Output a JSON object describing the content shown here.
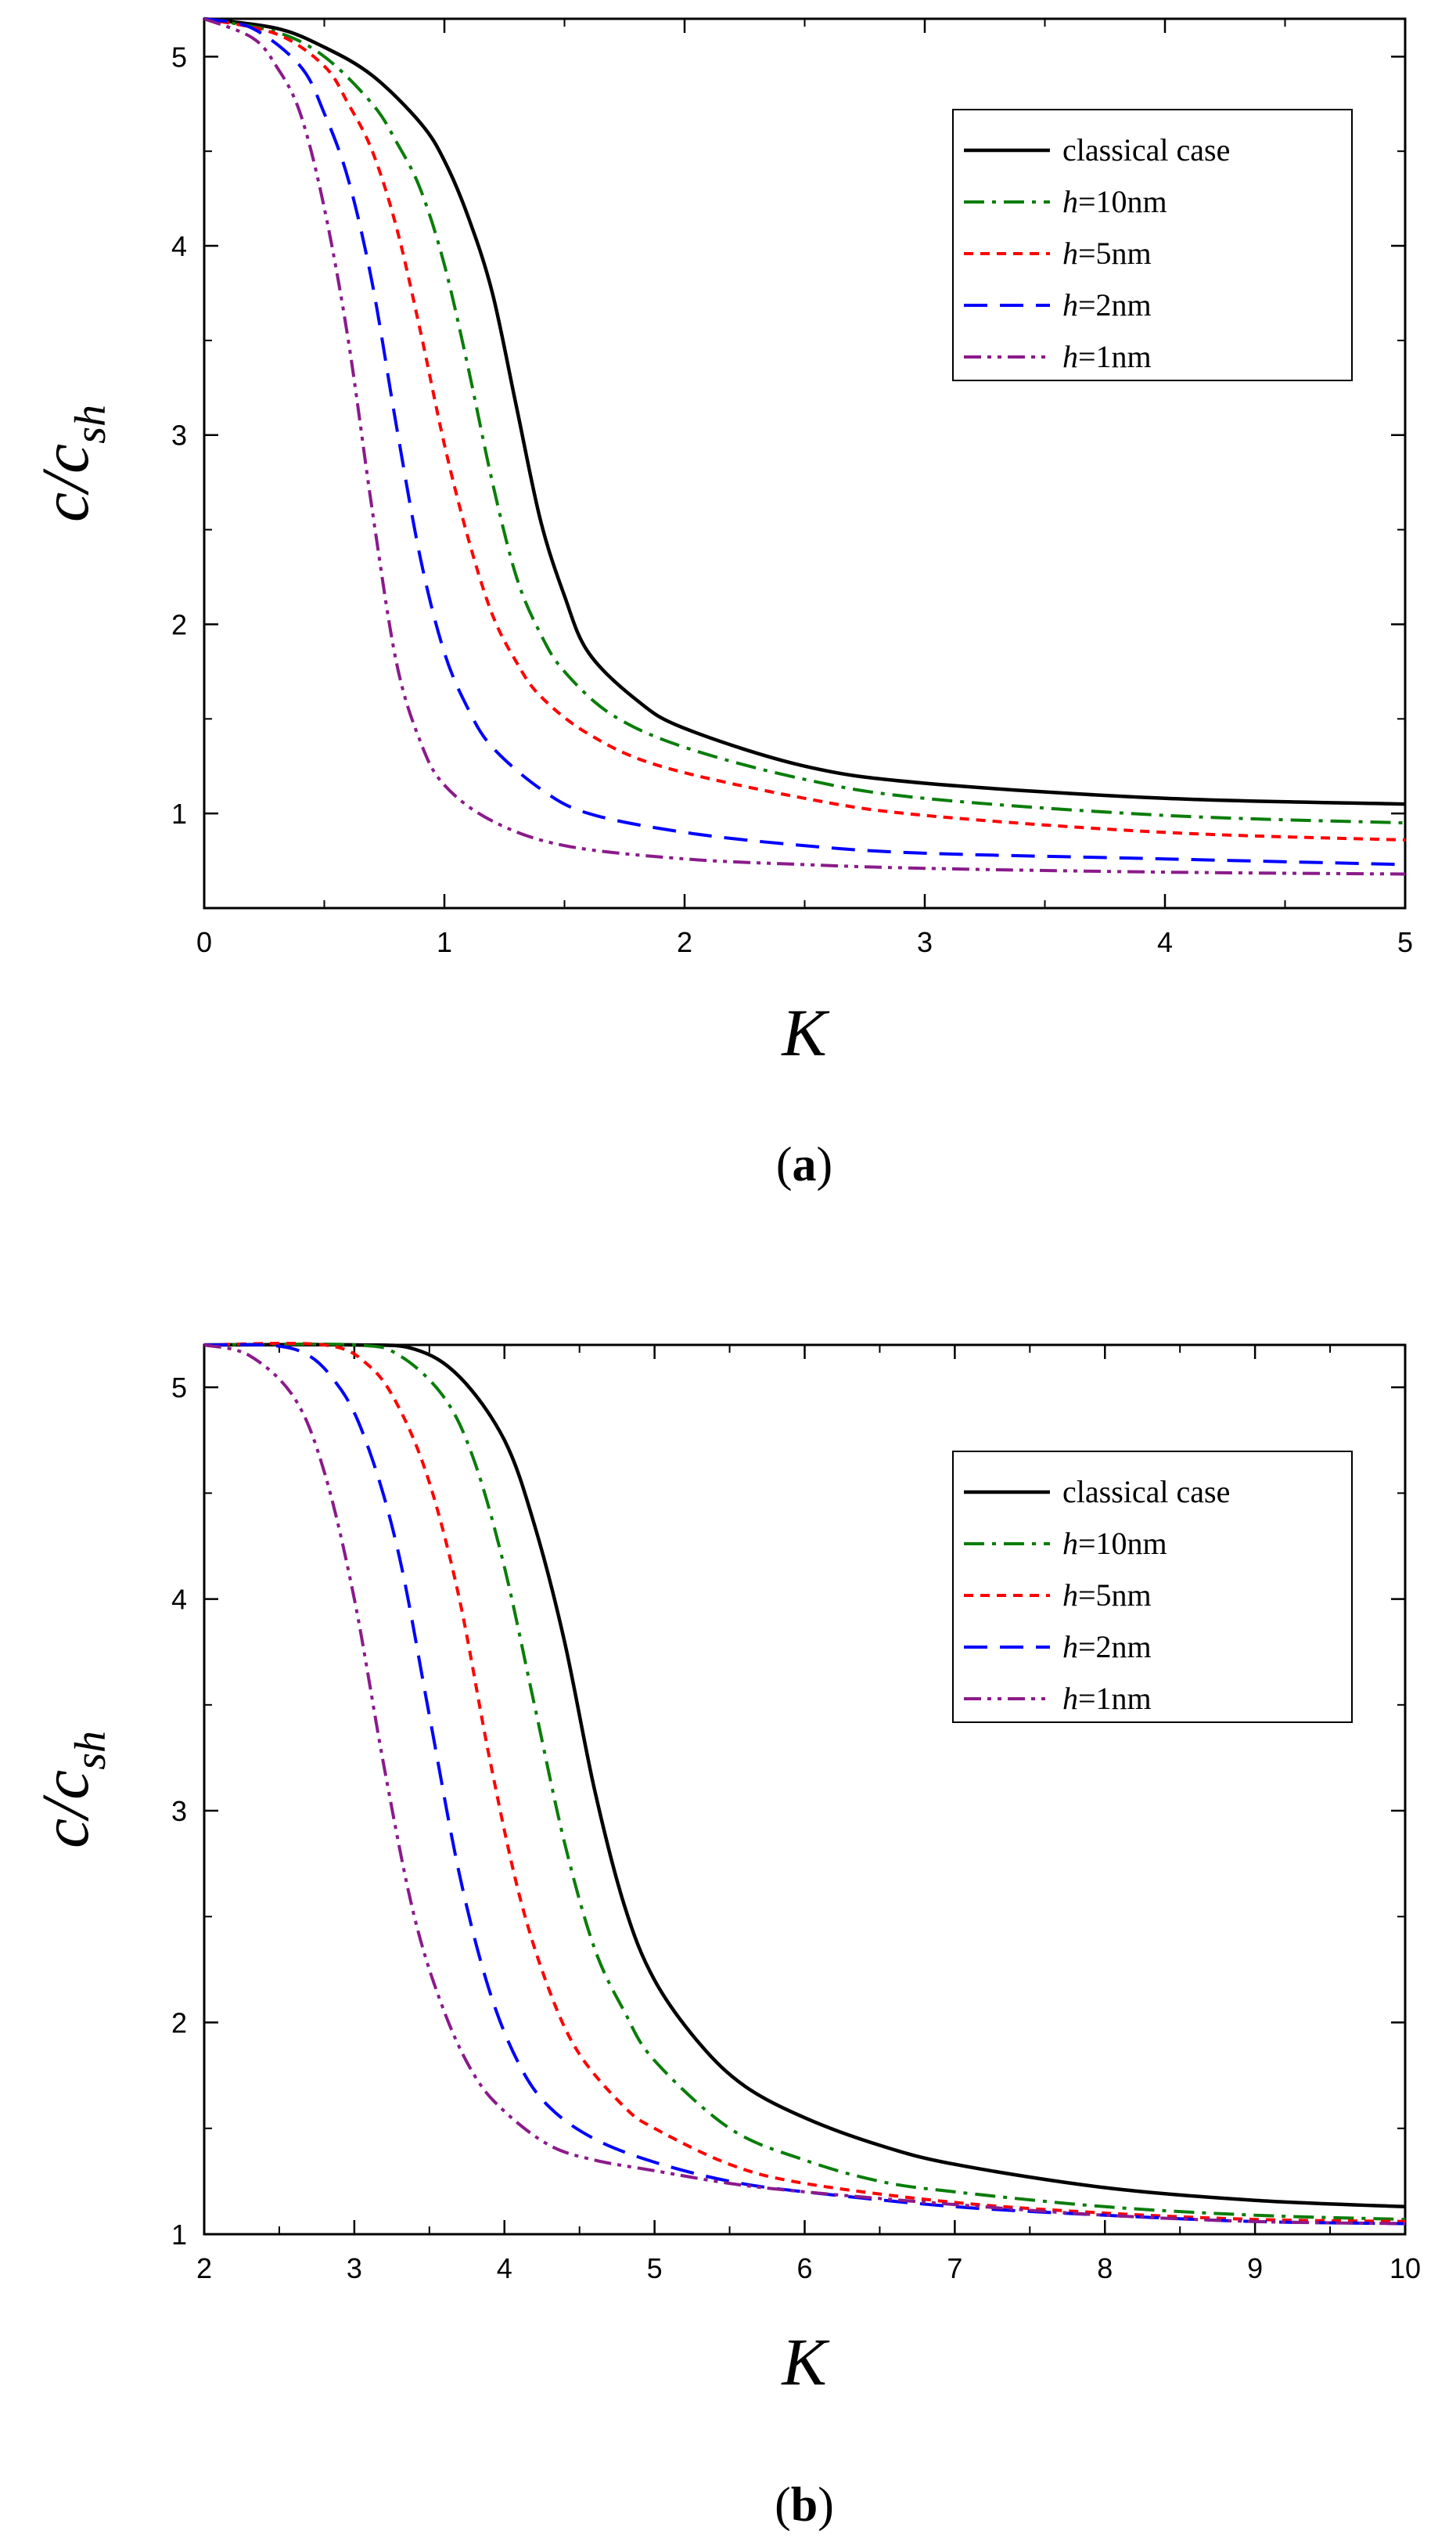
{
  "figure": {
    "panels": [
      {
        "label_open": "(",
        "label_letter": "a",
        "label_close": ")"
      },
      {
        "label_open": "(",
        "label_letter": "b",
        "label_close": ")"
      }
    ]
  },
  "chart_data": [
    {
      "type": "line",
      "title": "",
      "xlabel": "K",
      "ylabel_main": "c/c",
      "ylabel_sub": "sh",
      "xlim": [
        0,
        5
      ],
      "ylim": [
        0.5,
        5.2
      ],
      "xticks": [
        0,
        1,
        2,
        3,
        4,
        5
      ],
      "yticks": [
        1,
        2,
        3,
        4,
        5
      ],
      "legend_position": "top-right",
      "series": [
        {
          "name": "classical case",
          "name_italic": "",
          "name_rest": "classical case",
          "color": "#000000",
          "dash": "solid",
          "x": [
            0,
            0.3,
            0.5,
            0.7,
            0.9,
            1.0,
            1.1,
            1.2,
            1.3,
            1.4,
            1.5,
            1.6,
            1.8,
            2.0,
            2.5,
            3.0,
            4.0,
            5.0
          ],
          "y": [
            5.2,
            5.15,
            5.05,
            4.9,
            4.65,
            4.45,
            4.15,
            3.75,
            3.15,
            2.55,
            2.15,
            1.85,
            1.6,
            1.45,
            1.25,
            1.16,
            1.08,
            1.05
          ]
        },
        {
          "name": "h=10nm",
          "name_italic": "h",
          "name_rest": "=10nm",
          "color": "#0a7d0a",
          "dash": "dashdot",
          "x": [
            0,
            0.3,
            0.5,
            0.7,
            0.8,
            0.9,
            1.0,
            1.1,
            1.2,
            1.3,
            1.4,
            1.5,
            1.7,
            2.0,
            2.5,
            3.0,
            4.0,
            5.0
          ],
          "y": [
            5.2,
            5.13,
            5.0,
            4.75,
            4.55,
            4.3,
            3.9,
            3.35,
            2.75,
            2.25,
            1.95,
            1.75,
            1.52,
            1.35,
            1.18,
            1.08,
            0.99,
            0.95
          ]
        },
        {
          "name": "h=5nm",
          "name_italic": "h",
          "name_rest": "=5nm",
          "color": "#ff0000",
          "dash": "dashed",
          "x": [
            0,
            0.3,
            0.5,
            0.6,
            0.7,
            0.8,
            0.9,
            1.0,
            1.1,
            1.2,
            1.3,
            1.4,
            1.6,
            1.9,
            2.5,
            3.0,
            4.0,
            5.0
          ],
          "y": [
            5.2,
            5.12,
            4.95,
            4.75,
            4.5,
            4.1,
            3.55,
            2.95,
            2.45,
            2.05,
            1.8,
            1.62,
            1.42,
            1.25,
            1.08,
            0.99,
            0.9,
            0.86
          ]
        },
        {
          "name": "h=2nm",
          "name_italic": "h",
          "name_rest": "=2nm",
          "color": "#0000ff",
          "dash": "longdash",
          "x": [
            0,
            0.2,
            0.4,
            0.5,
            0.6,
            0.7,
            0.8,
            0.9,
            1.0,
            1.1,
            1.2,
            1.4,
            1.6,
            2.0,
            2.5,
            3.0,
            4.0,
            5.0
          ],
          "y": [
            5.2,
            5.15,
            4.95,
            4.7,
            4.35,
            3.8,
            3.05,
            2.35,
            1.85,
            1.55,
            1.35,
            1.13,
            1.0,
            0.9,
            0.83,
            0.79,
            0.76,
            0.73
          ]
        },
        {
          "name": "h=1nm",
          "name_italic": "h",
          "name_rest": "=1nm",
          "color": "#8b1a8b",
          "dash": "dashdotdot",
          "x": [
            0,
            0.2,
            0.3,
            0.4,
            0.5,
            0.6,
            0.7,
            0.8,
            0.9,
            1.0,
            1.2,
            1.5,
            2.0,
            2.5,
            3.0,
            4.0,
            5.0
          ],
          "y": [
            5.2,
            5.1,
            4.95,
            4.7,
            4.2,
            3.5,
            2.6,
            1.8,
            1.38,
            1.15,
            0.96,
            0.83,
            0.76,
            0.73,
            0.71,
            0.69,
            0.68
          ]
        }
      ]
    },
    {
      "type": "line",
      "title": "",
      "xlabel": "K",
      "ylabel_main": "c/c",
      "ylabel_sub": "sh",
      "xlim": [
        2,
        10
      ],
      "ylim": [
        1,
        5.2
      ],
      "xticks": [
        2,
        3,
        4,
        5,
        6,
        7,
        8,
        9,
        10
      ],
      "yticks": [
        1,
        2,
        3,
        4,
        5
      ],
      "legend_position": "top-right",
      "series": [
        {
          "name": "classical case",
          "name_italic": "",
          "name_rest": "classical case",
          "color": "#000000",
          "dash": "solid",
          "x": [
            2.0,
            3.0,
            3.4,
            3.7,
            4.0,
            4.2,
            4.4,
            4.6,
            4.8,
            5.0,
            5.3,
            5.6,
            6.0,
            6.5,
            7.0,
            8.0,
            9.0,
            10.0
          ],
          "y": [
            5.2,
            5.2,
            5.18,
            5.05,
            4.75,
            4.35,
            3.8,
            3.1,
            2.55,
            2.2,
            1.9,
            1.7,
            1.55,
            1.42,
            1.33,
            1.22,
            1.16,
            1.13
          ]
        },
        {
          "name": "h=10nm",
          "name_italic": "h",
          "name_rest": "=10nm",
          "color": "#0a7d0a",
          "dash": "dashdot",
          "x": [
            2.0,
            3.0,
            3.3,
            3.6,
            3.8,
            4.0,
            4.2,
            4.4,
            4.6,
            4.8,
            5.0,
            5.5,
            6.0,
            6.5,
            7.0,
            8.0,
            9.0,
            10.0
          ],
          "y": [
            5.2,
            5.2,
            5.15,
            4.95,
            4.65,
            4.15,
            3.5,
            2.85,
            2.35,
            2.05,
            1.82,
            1.5,
            1.35,
            1.25,
            1.2,
            1.13,
            1.09,
            1.07
          ]
        },
        {
          "name": "h=5nm",
          "name_italic": "h",
          "name_rest": "=5nm",
          "color": "#ff0000",
          "dash": "dashed",
          "x": [
            2.0,
            2.8,
            3.1,
            3.3,
            3.5,
            3.7,
            3.9,
            4.1,
            4.3,
            4.5,
            4.8,
            5.0,
            5.5,
            6.0,
            7.0,
            8.0,
            9.0,
            10.0
          ],
          "y": [
            5.2,
            5.2,
            5.1,
            4.9,
            4.55,
            4.0,
            3.25,
            2.6,
            2.15,
            1.85,
            1.6,
            1.5,
            1.33,
            1.24,
            1.15,
            1.1,
            1.07,
            1.06
          ]
        },
        {
          "name": "h=2nm",
          "name_italic": "h",
          "name_rest": "=2nm",
          "color": "#0000ff",
          "dash": "longdash",
          "x": [
            2.0,
            2.6,
            2.9,
            3.1,
            3.3,
            3.5,
            3.7,
            3.9,
            4.1,
            4.3,
            4.6,
            5.0,
            5.5,
            6.0,
            7.0,
            8.0,
            9.0,
            10.0
          ],
          "y": [
            5.2,
            5.18,
            5.0,
            4.7,
            4.2,
            3.45,
            2.7,
            2.15,
            1.8,
            1.6,
            1.45,
            1.34,
            1.25,
            1.2,
            1.13,
            1.09,
            1.06,
            1.05
          ]
        },
        {
          "name": "h=1nm",
          "name_italic": "h",
          "name_rest": "=1nm",
          "color": "#8b1a8b",
          "dash": "dashdotdot",
          "x": [
            2.0,
            2.3,
            2.6,
            2.8,
            3.0,
            3.2,
            3.4,
            3.6,
            3.8,
            4.0,
            4.3,
            4.6,
            5.0,
            5.5,
            6.0,
            7.0,
            8.0,
            9.0,
            10.0
          ],
          "y": [
            5.2,
            5.15,
            4.95,
            4.6,
            4.0,
            3.2,
            2.5,
            2.05,
            1.75,
            1.58,
            1.42,
            1.35,
            1.3,
            1.24,
            1.2,
            1.14,
            1.09,
            1.06,
            1.05
          ]
        }
      ]
    }
  ]
}
